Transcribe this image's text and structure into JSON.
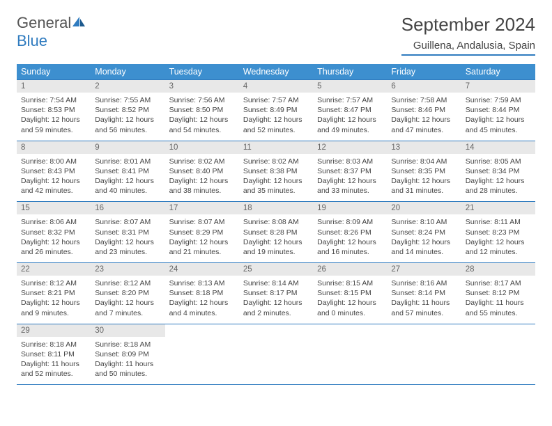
{
  "brand": {
    "word1": "General",
    "word2": "Blue",
    "color1": "#555555",
    "color2": "#2f7bbf"
  },
  "title": "September 2024",
  "location": "Guillena, Andalusia, Spain",
  "colors": {
    "header_bg": "#3d8fcf",
    "header_fg": "#ffffff",
    "daynum_bg": "#e8e8e8",
    "daynum_fg": "#666666",
    "rule": "#2f7bbf",
    "body_text": "#444444",
    "page_bg": "#ffffff"
  },
  "fonts": {
    "title_pt": 26,
    "location_pt": 15,
    "header_pt": 12.5,
    "daynum_pt": 11.5,
    "body_pt": 10.5
  },
  "day_labels": [
    "Sunday",
    "Monday",
    "Tuesday",
    "Wednesday",
    "Thursday",
    "Friday",
    "Saturday"
  ],
  "weeks": [
    [
      {
        "n": "1",
        "sr": "Sunrise: 7:54 AM",
        "ss": "Sunset: 8:53 PM",
        "d1": "Daylight: 12 hours",
        "d2": "and 59 minutes."
      },
      {
        "n": "2",
        "sr": "Sunrise: 7:55 AM",
        "ss": "Sunset: 8:52 PM",
        "d1": "Daylight: 12 hours",
        "d2": "and 56 minutes."
      },
      {
        "n": "3",
        "sr": "Sunrise: 7:56 AM",
        "ss": "Sunset: 8:50 PM",
        "d1": "Daylight: 12 hours",
        "d2": "and 54 minutes."
      },
      {
        "n": "4",
        "sr": "Sunrise: 7:57 AM",
        "ss": "Sunset: 8:49 PM",
        "d1": "Daylight: 12 hours",
        "d2": "and 52 minutes."
      },
      {
        "n": "5",
        "sr": "Sunrise: 7:57 AM",
        "ss": "Sunset: 8:47 PM",
        "d1": "Daylight: 12 hours",
        "d2": "and 49 minutes."
      },
      {
        "n": "6",
        "sr": "Sunrise: 7:58 AM",
        "ss": "Sunset: 8:46 PM",
        "d1": "Daylight: 12 hours",
        "d2": "and 47 minutes."
      },
      {
        "n": "7",
        "sr": "Sunrise: 7:59 AM",
        "ss": "Sunset: 8:44 PM",
        "d1": "Daylight: 12 hours",
        "d2": "and 45 minutes."
      }
    ],
    [
      {
        "n": "8",
        "sr": "Sunrise: 8:00 AM",
        "ss": "Sunset: 8:43 PM",
        "d1": "Daylight: 12 hours",
        "d2": "and 42 minutes."
      },
      {
        "n": "9",
        "sr": "Sunrise: 8:01 AM",
        "ss": "Sunset: 8:41 PM",
        "d1": "Daylight: 12 hours",
        "d2": "and 40 minutes."
      },
      {
        "n": "10",
        "sr": "Sunrise: 8:02 AM",
        "ss": "Sunset: 8:40 PM",
        "d1": "Daylight: 12 hours",
        "d2": "and 38 minutes."
      },
      {
        "n": "11",
        "sr": "Sunrise: 8:02 AM",
        "ss": "Sunset: 8:38 PM",
        "d1": "Daylight: 12 hours",
        "d2": "and 35 minutes."
      },
      {
        "n": "12",
        "sr": "Sunrise: 8:03 AM",
        "ss": "Sunset: 8:37 PM",
        "d1": "Daylight: 12 hours",
        "d2": "and 33 minutes."
      },
      {
        "n": "13",
        "sr": "Sunrise: 8:04 AM",
        "ss": "Sunset: 8:35 PM",
        "d1": "Daylight: 12 hours",
        "d2": "and 31 minutes."
      },
      {
        "n": "14",
        "sr": "Sunrise: 8:05 AM",
        "ss": "Sunset: 8:34 PM",
        "d1": "Daylight: 12 hours",
        "d2": "and 28 minutes."
      }
    ],
    [
      {
        "n": "15",
        "sr": "Sunrise: 8:06 AM",
        "ss": "Sunset: 8:32 PM",
        "d1": "Daylight: 12 hours",
        "d2": "and 26 minutes."
      },
      {
        "n": "16",
        "sr": "Sunrise: 8:07 AM",
        "ss": "Sunset: 8:31 PM",
        "d1": "Daylight: 12 hours",
        "d2": "and 23 minutes."
      },
      {
        "n": "17",
        "sr": "Sunrise: 8:07 AM",
        "ss": "Sunset: 8:29 PM",
        "d1": "Daylight: 12 hours",
        "d2": "and 21 minutes."
      },
      {
        "n": "18",
        "sr": "Sunrise: 8:08 AM",
        "ss": "Sunset: 8:28 PM",
        "d1": "Daylight: 12 hours",
        "d2": "and 19 minutes."
      },
      {
        "n": "19",
        "sr": "Sunrise: 8:09 AM",
        "ss": "Sunset: 8:26 PM",
        "d1": "Daylight: 12 hours",
        "d2": "and 16 minutes."
      },
      {
        "n": "20",
        "sr": "Sunrise: 8:10 AM",
        "ss": "Sunset: 8:24 PM",
        "d1": "Daylight: 12 hours",
        "d2": "and 14 minutes."
      },
      {
        "n": "21",
        "sr": "Sunrise: 8:11 AM",
        "ss": "Sunset: 8:23 PM",
        "d1": "Daylight: 12 hours",
        "d2": "and 12 minutes."
      }
    ],
    [
      {
        "n": "22",
        "sr": "Sunrise: 8:12 AM",
        "ss": "Sunset: 8:21 PM",
        "d1": "Daylight: 12 hours",
        "d2": "and 9 minutes."
      },
      {
        "n": "23",
        "sr": "Sunrise: 8:12 AM",
        "ss": "Sunset: 8:20 PM",
        "d1": "Daylight: 12 hours",
        "d2": "and 7 minutes."
      },
      {
        "n": "24",
        "sr": "Sunrise: 8:13 AM",
        "ss": "Sunset: 8:18 PM",
        "d1": "Daylight: 12 hours",
        "d2": "and 4 minutes."
      },
      {
        "n": "25",
        "sr": "Sunrise: 8:14 AM",
        "ss": "Sunset: 8:17 PM",
        "d1": "Daylight: 12 hours",
        "d2": "and 2 minutes."
      },
      {
        "n": "26",
        "sr": "Sunrise: 8:15 AM",
        "ss": "Sunset: 8:15 PM",
        "d1": "Daylight: 12 hours",
        "d2": "and 0 minutes."
      },
      {
        "n": "27",
        "sr": "Sunrise: 8:16 AM",
        "ss": "Sunset: 8:14 PM",
        "d1": "Daylight: 11 hours",
        "d2": "and 57 minutes."
      },
      {
        "n": "28",
        "sr": "Sunrise: 8:17 AM",
        "ss": "Sunset: 8:12 PM",
        "d1": "Daylight: 11 hours",
        "d2": "and 55 minutes."
      }
    ],
    [
      {
        "n": "29",
        "sr": "Sunrise: 8:18 AM",
        "ss": "Sunset: 8:11 PM",
        "d1": "Daylight: 11 hours",
        "d2": "and 52 minutes."
      },
      {
        "n": "30",
        "sr": "Sunrise: 8:18 AM",
        "ss": "Sunset: 8:09 PM",
        "d1": "Daylight: 11 hours",
        "d2": "and 50 minutes."
      },
      null,
      null,
      null,
      null,
      null
    ]
  ]
}
